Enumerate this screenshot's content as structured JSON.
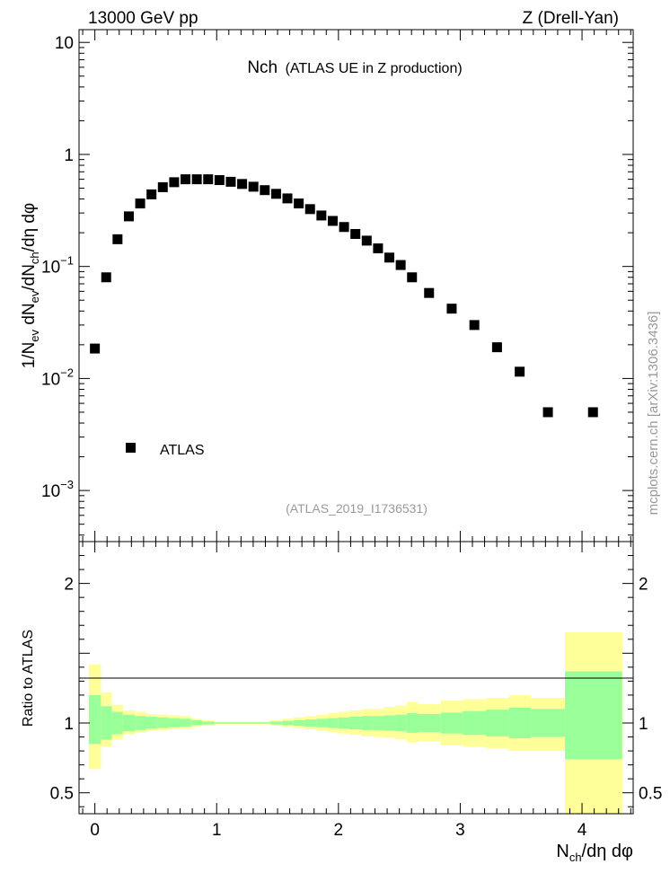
{
  "header": {
    "left": "13000 GeV pp",
    "right": "Z (Drell-Yan)"
  },
  "plot_title": {
    "main": "Nch",
    "sub": "(ATLAS UE in Z production)"
  },
  "analysis_id": "(ATLAS_2019_I1736531)",
  "watermark": "mcplots.cern.ch [arXiv:1306.3436]",
  "legend": {
    "label": "ATLAS",
    "marker_color": "#000000"
  },
  "colors": {
    "band_outer": "#ffff99",
    "band_inner": "#99ff99",
    "marker": "#000000"
  },
  "chart_data": [
    {
      "type": "scatter",
      "panel": "main",
      "y_scale": "log",
      "ylabel": "1/N_ev dN_ev/dN_ch/dη dφ",
      "xlim": [
        -0.13,
        4.42
      ],
      "ylim": [
        0.00035,
        13
      ],
      "y_tick_labels": [
        "10^-3",
        "10^-2",
        "10^-1",
        "1",
        "10"
      ],
      "series": [
        {
          "name": "ATLAS",
          "x": [
            0.0,
            0.093,
            0.186,
            0.279,
            0.372,
            0.465,
            0.558,
            0.651,
            0.744,
            0.837,
            0.93,
            1.023,
            1.116,
            1.209,
            1.302,
            1.395,
            1.488,
            1.581,
            1.674,
            1.767,
            1.86,
            1.953,
            2.046,
            2.139,
            2.232,
            2.325,
            2.418,
            2.511,
            2.604,
            2.744,
            2.93,
            3.116,
            3.302,
            3.488,
            3.72,
            4.09
          ],
          "y": [
            0.0185,
            0.08,
            0.175,
            0.28,
            0.365,
            0.44,
            0.51,
            0.565,
            0.6,
            0.6,
            0.6,
            0.59,
            0.57,
            0.545,
            0.515,
            0.48,
            0.445,
            0.405,
            0.365,
            0.325,
            0.285,
            0.255,
            0.225,
            0.195,
            0.17,
            0.145,
            0.12,
            0.103,
            0.08,
            0.058,
            0.042,
            0.03,
            0.019,
            0.0115,
            0.005,
            0.005
          ]
        }
      ]
    },
    {
      "type": "area",
      "panel": "ratio",
      "ylabel": "Ratio to ATLAS",
      "xlabel": "N_ch/dη dφ",
      "xlim": [
        -0.13,
        4.42
      ],
      "ylim": [
        0.35,
        2.3
      ],
      "y_tick_labels": [
        "0.5",
        "1",
        "2"
      ],
      "x_tick_labels": [
        "0",
        "1",
        "2",
        "3",
        "4"
      ],
      "bins": {
        "edges": [
          -0.05,
          0.05,
          0.14,
          0.23,
          0.33,
          0.42,
          0.51,
          0.6,
          0.7,
          0.79,
          0.88,
          0.98,
          1.07,
          1.16,
          1.26,
          1.35,
          1.44,
          1.54,
          1.63,
          1.72,
          1.82,
          1.91,
          2.0,
          2.09,
          2.19,
          2.28,
          2.37,
          2.47,
          2.56,
          2.65,
          2.84,
          3.02,
          3.21,
          3.4,
          3.58,
          3.86,
          4.33
        ],
        "inner_lo": [
          0.85,
          0.88,
          0.92,
          0.94,
          0.95,
          0.96,
          0.965,
          0.97,
          0.975,
          0.985,
          0.99,
          0.995,
          0.995,
          0.995,
          0.995,
          0.995,
          0.99,
          0.985,
          0.98,
          0.975,
          0.97,
          0.965,
          0.96,
          0.955,
          0.95,
          0.95,
          0.945,
          0.94,
          0.93,
          0.935,
          0.925,
          0.915,
          0.905,
          0.89,
          0.9,
          0.74
        ],
        "inner_hi": [
          1.2,
          1.12,
          1.08,
          1.06,
          1.05,
          1.045,
          1.04,
          1.035,
          1.03,
          1.02,
          1.01,
          1.005,
          1.005,
          1.005,
          1.005,
          1.005,
          1.01,
          1.015,
          1.02,
          1.025,
          1.03,
          1.035,
          1.04,
          1.045,
          1.05,
          1.05,
          1.055,
          1.06,
          1.07,
          1.065,
          1.075,
          1.085,
          1.095,
          1.11,
          1.1,
          1.37
        ],
        "outer_lo": [
          0.67,
          0.83,
          0.88,
          0.92,
          0.93,
          0.945,
          0.95,
          0.955,
          0.96,
          0.975,
          0.985,
          0.99,
          0.99,
          0.99,
          0.99,
          0.99,
          0.985,
          0.975,
          0.965,
          0.955,
          0.945,
          0.935,
          0.925,
          0.915,
          0.905,
          0.9,
          0.895,
          0.885,
          0.86,
          0.87,
          0.84,
          0.83,
          0.82,
          0.8,
          0.8,
          0.34
        ],
        "outer_hi": [
          1.42,
          1.22,
          1.13,
          1.09,
          1.08,
          1.065,
          1.06,
          1.055,
          1.05,
          1.03,
          1.02,
          1.01,
          1.01,
          1.01,
          1.01,
          1.01,
          1.02,
          1.03,
          1.04,
          1.05,
          1.06,
          1.07,
          1.08,
          1.09,
          1.1,
          1.1,
          1.115,
          1.125,
          1.15,
          1.135,
          1.16,
          1.17,
          1.18,
          1.2,
          1.18,
          1.65
        ]
      }
    }
  ]
}
